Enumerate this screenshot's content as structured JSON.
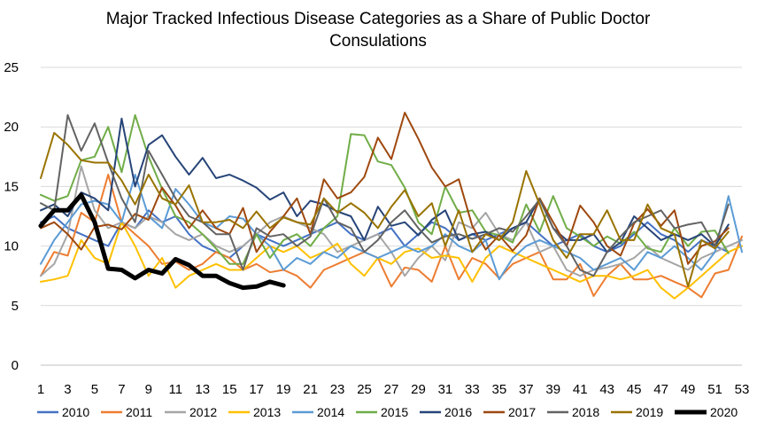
{
  "chart_data": {
    "type": "line",
    "title_lines": [
      "Major Tracked Infectious Disease Categories as a Share of Public Doctor",
      "Consulations"
    ],
    "xlabel": "",
    "ylabel": "",
    "ylim": [
      0,
      25
    ],
    "xlim": [
      1,
      53
    ],
    "y_ticks": [
      0,
      5,
      10,
      15,
      20,
      25
    ],
    "x_ticks": [
      1,
      3,
      5,
      7,
      9,
      11,
      13,
      15,
      17,
      19,
      21,
      23,
      25,
      27,
      29,
      31,
      33,
      35,
      37,
      39,
      41,
      43,
      45,
      47,
      49,
      51,
      53
    ],
    "grid": true,
    "legend_position": "bottom",
    "series": [
      {
        "name": "2010",
        "color": "#4472c4",
        "width": 2,
        "values": [
          12,
          12.5,
          11.5,
          11,
          10.5,
          10,
          12,
          11.5,
          13,
          12,
          12.5,
          11,
          10,
          9.5,
          9,
          10,
          11,
          10.5,
          10,
          10.5,
          11,
          11.5,
          12,
          11,
          10.5,
          11,
          11.5,
          10,
          11,
          12,
          11.5,
          10.5,
          11,
          10.5,
          11,
          11.5,
          12,
          11,
          10,
          10.5,
          11,
          10,
          9.5,
          10,
          11,
          12,
          11,
          10.5,
          9.5,
          10.5,
          10,
          9.5
        ]
      },
      {
        "name": "2011",
        "color": "#ed7d31",
        "width": 2,
        "values": [
          7.5,
          9.5,
          9.2,
          12.8,
          12,
          16,
          12,
          11,
          10,
          8.5,
          8.7,
          8,
          8.5,
          9.5,
          9,
          8,
          8.5,
          7.8,
          8,
          7.5,
          6.5,
          8,
          8.5,
          9,
          9.5,
          9,
          6.6,
          8.2,
          8,
          7,
          10,
          7.2,
          9,
          8.5,
          7.3,
          8.5,
          9,
          9.5,
          7.2,
          7.2,
          8.5,
          5.8,
          7.5,
          8.5,
          7.2,
          7.2,
          7.5,
          7,
          6.5,
          5.7,
          7.7,
          8,
          10.8
        ]
      },
      {
        "name": "2012",
        "color": "#a5a5a5",
        "width": 2,
        "values": [
          7.5,
          8.5,
          11,
          16.7,
          13,
          11.5,
          12,
          11.5,
          12.5,
          12,
          11,
          10.5,
          11,
          10,
          9.5,
          10,
          11,
          12,
          12.5,
          12,
          11.5,
          11,
          9.5,
          10,
          10.5,
          11,
          9.5,
          7.5,
          9,
          10,
          8.8,
          12,
          11.5,
          12.8,
          11,
          10.5,
          12,
          9.5,
          10,
          8,
          7.5,
          8,
          8.2,
          8.5,
          9,
          10,
          9,
          8.5,
          8,
          9,
          9.5,
          10,
          10.5
        ]
      },
      {
        "name": "2013",
        "color": "#ffc000",
        "width": 2,
        "values": [
          7,
          7.2,
          7.5,
          10.5,
          9,
          8.5,
          12,
          10,
          7.5,
          9,
          6.5,
          7.5,
          8,
          8.5,
          8,
          8,
          9,
          10,
          9.5,
          10,
          9,
          9.5,
          10.2,
          8.5,
          7.5,
          9,
          8.5,
          9.5,
          9.8,
          9,
          9.2,
          9,
          7,
          9,
          10,
          9.5,
          9,
          8.5,
          8,
          7.5,
          7,
          7.5,
          7.5,
          7.2,
          7.5,
          8,
          6.5,
          5.6,
          6.5,
          7.5,
          8.5,
          9.5,
          10
        ]
      },
      {
        "name": "2014",
        "color": "#5b9bd5",
        "width": 2,
        "values": [
          8.5,
          10.5,
          12,
          13.5,
          13.8,
          13.5,
          12,
          16,
          12.5,
          11.5,
          14.8,
          13.5,
          12,
          11.5,
          12.5,
          12.3,
          11,
          10,
          8,
          9,
          8.5,
          9.5,
          9,
          10,
          9.5,
          9,
          9.5,
          10,
          9.5,
          10,
          11,
          10,
          9.5,
          10.5,
          7.2,
          9,
          10,
          10.5,
          10,
          9.5,
          9,
          8,
          8.5,
          9,
          8,
          9.5,
          9,
          10,
          9,
          8,
          9.5,
          14.2,
          9.5
        ]
      },
      {
        "name": "2015",
        "color": "#70ad47",
        "width": 2,
        "values": [
          14.3,
          13.8,
          14.2,
          17.2,
          17.5,
          20,
          16.2,
          21,
          17.5,
          14.8,
          12.5,
          12,
          11,
          9.8,
          8.5,
          8.5,
          11,
          9,
          10.5,
          11,
          10,
          11.5,
          12.5,
          19.4,
          19.3,
          17.1,
          16.8,
          14.9,
          12,
          11,
          15,
          12.8,
          13,
          11.2,
          10.9,
          10.3,
          13.5,
          11.2,
          14.2,
          11.5,
          10.8,
          10,
          10.8,
          10.2,
          11.2,
          9.8,
          9.5,
          11.5,
          10,
          11.2,
          11.3,
          9.4
        ]
      },
      {
        "name": "2016",
        "color": "#264478",
        "width": 2,
        "values": [
          13,
          13.5,
          12.5,
          14.5,
          14,
          13,
          20.7,
          15,
          18.5,
          19.3,
          17.5,
          16,
          17.4,
          15.7,
          16,
          15.5,
          14.9,
          13.9,
          14.5,
          12.5,
          13.8,
          13.5,
          12.9,
          12.5,
          10.5,
          13.3,
          11.7,
          12,
          10.9,
          12.2,
          13,
          10.5,
          11,
          11.2,
          10.5,
          11.5,
          12,
          14,
          11.5,
          10.5,
          10.5,
          11,
          9.5,
          10.3,
          12.5,
          11.5,
          10.5,
          11,
          10.5,
          11,
          10,
          11.8
        ]
      },
      {
        "name": "2017",
        "color": "#9e480e",
        "width": 2,
        "values": [
          11.5,
          12,
          11,
          9.7,
          11.6,
          11.8,
          11.4,
          12.7,
          12.2,
          14.9,
          13.4,
          11.5,
          13,
          11.5,
          11,
          13.2,
          9.5,
          11.2,
          12.5,
          14,
          11,
          15.6,
          14,
          14.5,
          15.8,
          19.1,
          17.3,
          21.2,
          19,
          16.6,
          15,
          15.6,
          11.7,
          9.7,
          10.9,
          9.6,
          10.9,
          14,
          12,
          10,
          13.4,
          12,
          10,
          9.2,
          11.9,
          13.1,
          11.7,
          13,
          8.5,
          10,
          10.4,
          11.5
        ]
      },
      {
        "name": "2018",
        "color": "#636363",
        "width": 2,
        "values": [
          13.6,
          13,
          21,
          18,
          20.3,
          17,
          14,
          12,
          18,
          16,
          14,
          12.5,
          12,
          11,
          11,
          8,
          11.5,
          10.8,
          11,
          10,
          10.8,
          14,
          12,
          11.5,
          9.5,
          10.5,
          12,
          13,
          11.5,
          10.3,
          10.8,
          11,
          10.6,
          11,
          11.5,
          11.2,
          12.5,
          13.9,
          11.5,
          10,
          8,
          7.5,
          9.5,
          10.8,
          12,
          12.5,
          13,
          11.5,
          11.8,
          12,
          10,
          13.5
        ]
      },
      {
        "name": "2019",
        "color": "#997300",
        "width": 2,
        "values": [
          15.7,
          19.5,
          18.5,
          17.2,
          17,
          17,
          15.5,
          13.5,
          16,
          14,
          13.5,
          15.1,
          12,
          12,
          12.2,
          11.5,
          12.9,
          11.5,
          12.4,
          12,
          11.8,
          14,
          12.8,
          13.6,
          12.8,
          11.5,
          13.3,
          14.7,
          12.5,
          13.6,
          10,
          13,
          9.5,
          11,
          10.5,
          12,
          16.3,
          13.5,
          10.5,
          9,
          11,
          11,
          13,
          10.5,
          10.5,
          13.5,
          11.5,
          11,
          6.6,
          10.5,
          9.8,
          11.2
        ]
      },
      {
        "name": "2020",
        "color": "#000000",
        "width": 5,
        "values": [
          11.7,
          13,
          13,
          14.3,
          12,
          8.1,
          8,
          7.3,
          8,
          7.7,
          8.9,
          8.4,
          7.5,
          7.5,
          6.9,
          6.5,
          6.6,
          7,
          6.7
        ]
      }
    ]
  }
}
